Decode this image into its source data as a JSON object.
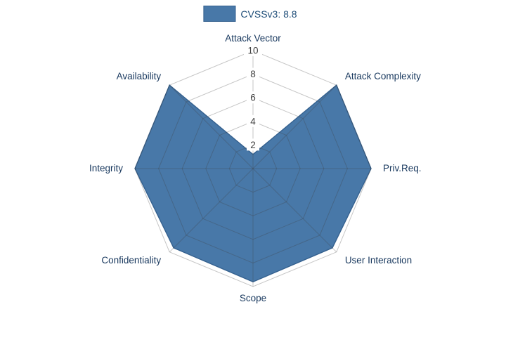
{
  "chart_data": {
    "type": "radar",
    "title": "CVSSv3: 8.8",
    "legend_label": "CVSSv3: 8.8",
    "axes": [
      "Attack Vector",
      "Attack Complexity",
      "Priv.Req.",
      "User Interaction",
      "Scope",
      "Confidentiality",
      "Integrity",
      "Availability"
    ],
    "values": [
      1.2,
      10,
      10,
      9.5,
      9.6,
      9.5,
      10,
      10
    ],
    "ticks": [
      2,
      4,
      6,
      8,
      10
    ],
    "max": 10,
    "grid": true,
    "legend_position": "top-center",
    "fill_color": "#4878A8",
    "edge_color": "#35618F",
    "grid_color": "#404040",
    "axis_label_color": "#17375D",
    "tick_label_color": "#3F3F3F",
    "legend_text_color": "#1F4E79",
    "background_color": "#FFFFFF"
  }
}
